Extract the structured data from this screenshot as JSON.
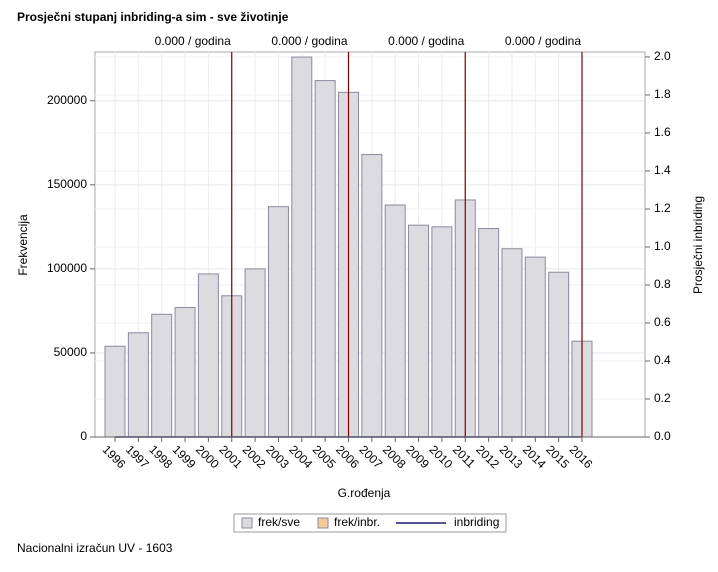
{
  "chart_data": {
    "type": "bar",
    "title": "Prosječni stupanj inbriding-a sim - sve životinje",
    "xlabel": "G.rođenja",
    "ylabel": "Frekvencija",
    "y2label": "Prosječni inbriding",
    "footnote": "Nacionalni izračun UV - 1603",
    "categories": [
      "1996",
      "1997",
      "1998",
      "1999",
      "2000",
      "2001",
      "2002",
      "2003",
      "2004",
      "2005",
      "2006",
      "2007",
      "2008",
      "2009",
      "2010",
      "2011",
      "2012",
      "2013",
      "2014",
      "2015",
      "2016"
    ],
    "series": [
      {
        "name": "frek/sve",
        "color": "#dcdce0",
        "values": [
          54000,
          62000,
          73000,
          77000,
          97000,
          84000,
          100000,
          137000,
          226000,
          212000,
          205000,
          168000,
          138000,
          126000,
          125000,
          141000,
          124000,
          112000,
          107000,
          98000,
          57000
        ]
      },
      {
        "name": "frek/inbr.",
        "color": "#f5c89a",
        "values": [
          0,
          0,
          0,
          0,
          0,
          0,
          0,
          0,
          0,
          0,
          0,
          0,
          0,
          0,
          0,
          0,
          0,
          0,
          0,
          0,
          0
        ]
      },
      {
        "name": "inbriding",
        "color": "#1c1c6c",
        "axis": "y2",
        "values": [
          0,
          0,
          0,
          0,
          0,
          0,
          0,
          0,
          0,
          0,
          0,
          0,
          0,
          0,
          0,
          0,
          0,
          0,
          0,
          0,
          0
        ]
      }
    ],
    "ylim": [
      0,
      229000
    ],
    "yticks": [
      0,
      50000,
      100000,
      150000,
      200000
    ],
    "y2lim": [
      0,
      2.026
    ],
    "y2ticks": [
      {
        "value": 0,
        "label": "0.0"
      },
      {
        "value": 0.2,
        "label": "0.2"
      },
      {
        "value": 0.4,
        "label": "0.4"
      },
      {
        "value": 0.6,
        "label": "0.6"
      },
      {
        "value": 0.8,
        "label": "0.8"
      },
      {
        "value": 1,
        "label": "1.0"
      },
      {
        "value": 1.2,
        "label": "1.2"
      },
      {
        "value": 1.4,
        "label": "1.4"
      },
      {
        "value": 1.6,
        "label": "1.6"
      },
      {
        "value": 1.8,
        "label": "1.8"
      },
      {
        "value": 2,
        "label": "2.0"
      }
    ],
    "reference_lines": [
      {
        "x": "2001",
        "label": "0.000 / godina"
      },
      {
        "x": "2006",
        "label": "0.000 / godina"
      },
      {
        "x": "2011",
        "label": "0.000 / godina"
      },
      {
        "x": "2016",
        "label": "0.000 / godina"
      }
    ],
    "reference_color": "#800000",
    "grid": true
  }
}
